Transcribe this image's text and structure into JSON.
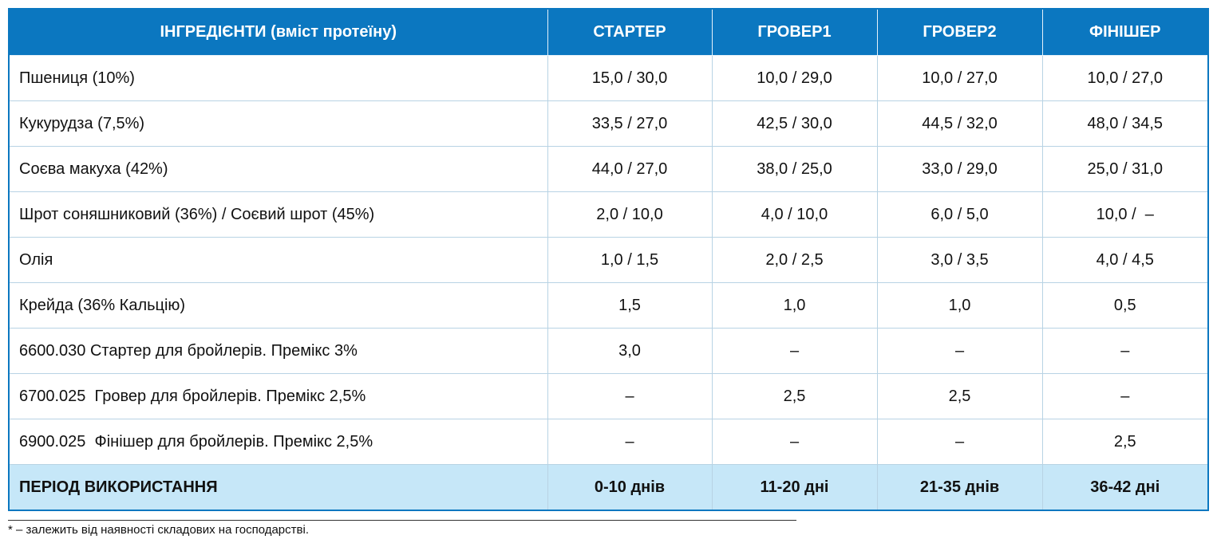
{
  "table": {
    "header": [
      "ІНГРЕДІЄНТИ (вміст протеїну)",
      "СТАРТЕР",
      "ГРОВЕР1",
      "ГРОВЕР2",
      "ФІНІШЕР"
    ],
    "rows": [
      [
        "Пшениця (10%)",
        "15,0 / 30,0",
        "10,0 / 29,0",
        "10,0 / 27,0",
        "10,0 / 27,0"
      ],
      [
        "Кукурудза (7,5%)",
        "33,5 / 27,0",
        "42,5 / 30,0",
        "44,5 / 32,0",
        "48,0 / 34,5"
      ],
      [
        "Соєва макуха (42%)",
        "44,0 / 27,0",
        "38,0 / 25,0",
        "33,0 / 29,0",
        "25,0 / 31,0"
      ],
      [
        "Шрот соняшниковий (36%) / Соєвий шрот (45%)",
        "2,0 / 10,0",
        "4,0 / 10,0",
        "6,0 / 5,0",
        "10,0 /  –"
      ],
      [
        "Олія",
        "1,0 / 1,5",
        "2,0 / 2,5",
        "3,0 / 3,5",
        "4,0 / 4,5"
      ],
      [
        "Крейда (36% Кальцію)",
        "1,5",
        "1,0",
        "1,0",
        "0,5"
      ],
      [
        "6600.030 Стартер для бройлерів. Премікс 3%",
        "3,0",
        "–",
        "–",
        "–"
      ],
      [
        "6700.025  Гровер для бройлерів. Премікс 2,5%",
        "–",
        "2,5",
        "2,5",
        "–"
      ],
      [
        "6900.025  Фінішер для бройлерів. Премікс 2,5%",
        "–",
        "–",
        "–",
        "2,5"
      ]
    ],
    "footer_row": [
      "ПЕРІОД ВИКОРИСТАННЯ",
      "0-10 днів",
      "11-20 дні",
      "21-35 днів",
      "36-42 дні"
    ]
  },
  "footnote": "* – залежить від наявності складових на господарстві."
}
